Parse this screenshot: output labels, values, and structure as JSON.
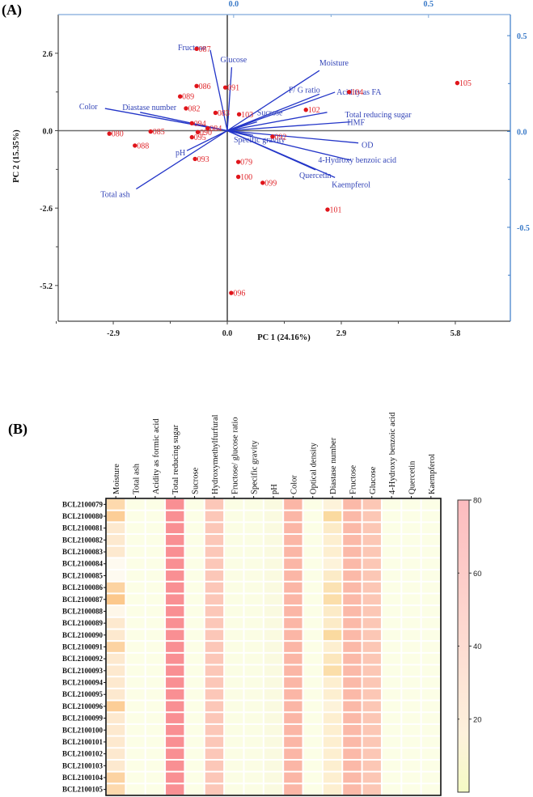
{
  "chart_data": [
    {
      "type": "scatter",
      "subtype": "biplot",
      "panel_label": "(A)",
      "xlabel": "PC 1 (24.16%)",
      "ylabel": "PC 2 (15.35%)",
      "xlim": [
        -4.3,
        7.2
      ],
      "ylim": [
        -6.4,
        3.9
      ],
      "x_ticks": [
        "-2.9",
        "0.0",
        "2.9",
        "5.8"
      ],
      "y_ticks": [
        "2.6",
        "0.0",
        "-2.6",
        "-5.2"
      ],
      "loading_axes": {
        "top_ticks": [
          "0.0",
          "0.5"
        ],
        "right_ticks": [
          "0.5",
          "0.0",
          "-0.5"
        ],
        "top_lim": [
          -0.45,
          0.71
        ],
        "right_lim": [
          -0.99,
          0.61
        ]
      },
      "scores": [
        {
          "label": "087",
          "x": -0.78,
          "y": 2.75
        },
        {
          "label": "086",
          "x": -0.78,
          "y": 1.5
        },
        {
          "label": "091",
          "x": -0.05,
          "y": 1.45
        },
        {
          "label": "089",
          "x": -1.2,
          "y": 1.15
        },
        {
          "label": "082",
          "x": -1.05,
          "y": 0.75
        },
        {
          "label": "083",
          "x": -0.3,
          "y": 0.6
        },
        {
          "label": "103",
          "x": 0.3,
          "y": 0.55
        },
        {
          "label": "094",
          "x": -0.9,
          "y": 0.25
        },
        {
          "label": "084",
          "x": -0.5,
          "y": 0.08
        },
        {
          "label": "090",
          "x": -0.75,
          "y": -0.05
        },
        {
          "label": "095",
          "x": -0.9,
          "y": -0.22
        },
        {
          "label": "085",
          "x": -1.95,
          "y": -0.03
        },
        {
          "label": "080",
          "x": -3.0,
          "y": -0.1
        },
        {
          "label": "088",
          "x": -2.35,
          "y": -0.5
        },
        {
          "label": "093",
          "x": -0.82,
          "y": -0.95
        },
        {
          "label": "079",
          "x": 0.28,
          "y": -1.05
        },
        {
          "label": "100",
          "x": 0.28,
          "y": -1.55
        },
        {
          "label": "099",
          "x": 0.9,
          "y": -1.75
        },
        {
          "label": "092",
          "x": 1.15,
          "y": -0.2
        },
        {
          "label": "102",
          "x": 2.0,
          "y": 0.7
        },
        {
          "label": "104",
          "x": 3.1,
          "y": 1.3
        },
        {
          "label": "105",
          "x": 5.85,
          "y": 1.6
        },
        {
          "label": "101",
          "x": 2.55,
          "y": -2.65
        },
        {
          "label": "096",
          "x": 0.1,
          "y": -5.45
        }
      ],
      "loadings": [
        {
          "name": "Fructose",
          "x": -0.06,
          "y": 0.425
        },
        {
          "name": "Glucose",
          "x": -0.005,
          "y": 0.335
        },
        {
          "name": "Moisture",
          "x": 0.22,
          "y": 0.318
        },
        {
          "name": "F/ G ratio",
          "x": 0.22,
          "y": 0.195
        },
        {
          "name": "Acidity as FA",
          "x": 0.26,
          "y": 0.205
        },
        {
          "name": "Sucrose",
          "x": 0.06,
          "y": 0.05
        },
        {
          "name": "Total reducing sugar",
          "x": 0.24,
          "y": 0.1
        },
        {
          "name": "HMF",
          "x": 0.3,
          "y": 0.05
        },
        {
          "name": "OD",
          "x": 0.32,
          "y": -0.06
        },
        {
          "name": "Specific gravity",
          "x": 0.05,
          "y": -0.02
        },
        {
          "name": "4-Hydroxy benzoic acid",
          "x": 0.3,
          "y": -0.15
        },
        {
          "name": "Quercetin",
          "x": 0.21,
          "y": -0.2
        },
        {
          "name": "Kaempferol",
          "x": 0.26,
          "y": -0.24
        },
        {
          "name": "Color",
          "x": -0.33,
          "y": 0.12
        },
        {
          "name": "Diastase number",
          "x": -0.24,
          "y": 0.1
        },
        {
          "name": "pH",
          "x": -0.12,
          "y": -0.1
        },
        {
          "name": "Total ash",
          "x": -0.25,
          "y": -0.3
        }
      ]
    },
    {
      "type": "heatmap",
      "panel_label": "(B)",
      "columns": [
        "Moisture",
        "Total ash",
        "Acidity as formic acid",
        "Total reducing sugar",
        "Sucrose",
        "Hydroxymethylfurfural",
        "Fructose/ glucose ratio",
        "Specific gravity",
        "pH",
        "Color",
        "Optical density",
        "Diastase number",
        "Fructose",
        "Glucose",
        "4-Hydroxy benzoic acid",
        "Quercetin",
        "Kaempferol"
      ],
      "rows": [
        "BCL2100079",
        "BCL2100080",
        "BCL2100081",
        "BCL2100082",
        "BCL2100083",
        "BCL2100084",
        "BCL2100085",
        "BCL2100086",
        "BCL2100087",
        "BCL2100088",
        "BCL2100089",
        "BCL2100090",
        "BCL2100091",
        "BCL2100092",
        "BCL2100093",
        "BCL2100094",
        "BCL2100095",
        "BCL2100096",
        "BCL2100099",
        "BCL2100100",
        "BCL2100101",
        "BCL2100102",
        "BCL2100103",
        "BCL2100104",
        "BCL2100105"
      ],
      "colorbar": {
        "min": 0,
        "max": 80,
        "ticks": [
          "80",
          "60",
          "40",
          "20"
        ]
      },
      "values": [
        [
          19.5,
          0.3,
          2,
          72,
          1.5,
          40,
          1.2,
          1.4,
          3.8,
          45,
          0.5,
          10,
          45,
          35,
          0.1,
          0.1,
          0.1
        ],
        [
          20.5,
          0.3,
          2,
          73,
          1.5,
          38,
          1.2,
          1.4,
          3.8,
          47,
          0.5,
          16,
          46,
          36,
          0.1,
          0.1,
          0.1
        ],
        [
          18,
          0.3,
          2,
          72,
          1.5,
          39,
          1.2,
          1.4,
          3.8,
          45,
          0.5,
          12,
          45,
          35,
          0.1,
          0.1,
          0.1
        ],
        [
          18,
          0.3,
          2,
          72,
          1.5,
          40,
          1.2,
          1.4,
          3.8,
          46,
          0.5,
          11,
          45,
          35,
          0.1,
          0.1,
          0.1
        ],
        [
          18,
          0.3,
          2,
          72,
          1.5,
          38,
          1.2,
          1.4,
          3.8,
          46,
          0.5,
          11,
          45,
          35,
          0.1,
          0.1,
          0.1
        ],
        [
          16.5,
          0.3,
          2,
          72,
          1.5,
          39,
          1.2,
          1.4,
          3.8,
          46,
          0.5,
          10,
          45,
          35,
          0.1,
          0.1,
          0.1
        ],
        [
          16.5,
          0.3,
          2,
          72,
          1.5,
          38,
          1.2,
          1.4,
          3.8,
          45,
          0.5,
          12,
          45,
          35,
          0.1,
          0.1,
          0.1
        ],
        [
          20,
          0.3,
          2,
          72,
          1.5,
          39,
          1.2,
          1.4,
          3.8,
          45,
          0.5,
          14,
          45,
          35,
          0.1,
          0.1,
          0.1
        ],
        [
          21,
          0.3,
          2,
          72,
          1.5,
          38,
          1.2,
          1.4,
          3.8,
          46,
          0.5,
          15,
          45,
          35,
          0.1,
          0.1,
          0.1
        ],
        [
          16.8,
          0.3,
          2,
          72,
          1.5,
          40,
          1.2,
          1.4,
          3.8,
          45,
          0.5,
          12,
          45,
          35,
          0.1,
          0.1,
          0.1
        ],
        [
          18,
          0.3,
          2,
          72,
          1.5,
          39,
          1.2,
          1.4,
          3.8,
          45,
          0.5,
          12,
          45,
          35,
          0.1,
          0.1,
          0.1
        ],
        [
          18,
          0.3,
          2,
          72,
          1.5,
          38,
          1.2,
          1.4,
          3.8,
          46,
          0.5,
          16,
          45,
          35,
          0.1,
          0.1,
          0.1
        ],
        [
          20,
          0.3,
          2,
          72,
          1.5,
          40,
          1.2,
          1.4,
          3.8,
          46,
          0.5,
          11,
          45,
          35,
          0.1,
          0.1,
          0.1
        ],
        [
          18,
          0.3,
          2,
          72,
          1.5,
          39,
          1.2,
          1.4,
          3.8,
          46,
          0.5,
          13,
          45,
          35,
          0.1,
          0.1,
          0.1
        ],
        [
          18,
          0.3,
          2,
          72,
          1.5,
          38,
          1.2,
          1.4,
          3.8,
          45,
          0.5,
          15,
          45,
          35,
          0.1,
          0.1,
          0.1
        ],
        [
          18,
          0.3,
          2,
          72,
          1.5,
          39,
          1.2,
          1.4,
          3.8,
          45,
          0.5,
          11,
          45,
          35,
          0.1,
          0.1,
          0.1
        ],
        [
          18,
          0.3,
          2,
          72,
          1.5,
          40,
          1.2,
          1.4,
          3.8,
          46,
          0.5,
          11,
          45,
          35,
          0.1,
          0.1,
          0.1
        ],
        [
          20.5,
          0.3,
          2,
          72,
          1.5,
          38,
          1.2,
          1.4,
          3.8,
          45,
          0.5,
          10,
          45,
          35,
          0.1,
          0.1,
          0.1
        ],
        [
          18,
          0.3,
          2,
          72,
          1.5,
          39,
          1.2,
          1.4,
          3.8,
          45,
          0.5,
          11,
          45,
          35,
          0.1,
          0.1,
          0.1
        ],
        [
          18,
          0.3,
          2,
          72,
          1.5,
          40,
          1.2,
          1.4,
          3.8,
          46,
          0.5,
          11,
          45,
          35,
          0.1,
          0.1,
          0.1
        ],
        [
          18,
          0.3,
          2,
          72,
          1.5,
          38,
          1.2,
          1.4,
          3.8,
          45,
          0.5,
          11,
          45,
          35,
          0.1,
          0.1,
          0.1
        ],
        [
          18,
          0.3,
          2,
          72,
          1.5,
          39,
          1.2,
          1.4,
          3.8,
          46,
          0.5,
          11,
          45,
          35,
          0.1,
          0.1,
          0.1
        ],
        [
          18,
          0.3,
          2,
          72,
          1.5,
          40,
          1.2,
          1.4,
          3.8,
          45,
          0.5,
          11,
          45,
          35,
          0.1,
          0.1,
          0.1
        ],
        [
          20,
          0.3,
          2,
          72,
          1.5,
          39,
          1.2,
          1.4,
          3.8,
          46,
          0.5,
          11,
          45,
          35,
          0.1,
          0.1,
          0.1
        ],
        [
          19.5,
          0.3,
          2,
          72,
          1.5,
          38,
          1.2,
          1.4,
          3.8,
          45,
          0.5,
          11,
          45,
          35,
          0.1,
          0.1,
          0.1
        ]
      ]
    }
  ]
}
